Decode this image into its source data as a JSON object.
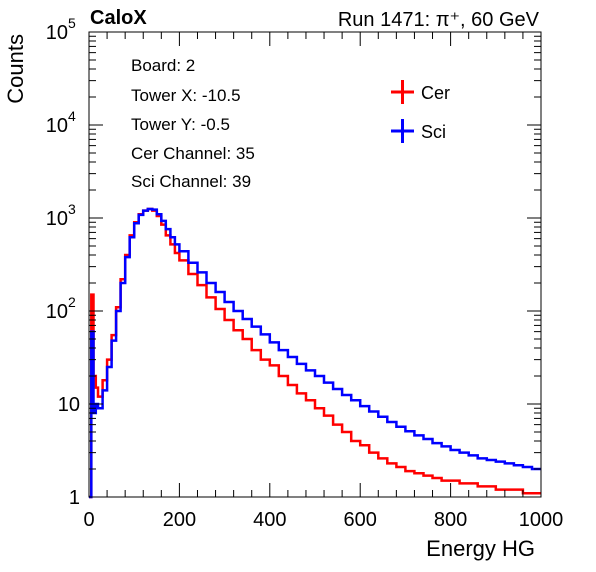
{
  "header": {
    "experiment": "CaloX",
    "run_info": "Run 1471:   π⁺, 60 GeV"
  },
  "info_box": {
    "lines": [
      "Board: 2",
      "Tower X: -10.5",
      "Tower Y: -0.5",
      "Cer Channel: 35",
      "Sci Channel: 39"
    ]
  },
  "chart_data": {
    "type": "line",
    "xlabel": "Energy HG",
    "ylabel": "Counts",
    "xlim": [
      0,
      1000
    ],
    "ylim": [
      1,
      100000
    ],
    "yscale": "log",
    "grid": false,
    "legend_position": "top-right",
    "x_ticks": [
      "0",
      "200",
      "400",
      "600",
      "800",
      "1000"
    ],
    "y_ticks": [
      {
        "base": "1",
        "exp": ""
      },
      {
        "base": "10",
        "exp": ""
      },
      {
        "base": "10",
        "exp": "2"
      },
      {
        "base": "10",
        "exp": "3"
      },
      {
        "base": "10",
        "exp": "4"
      },
      {
        "base": "10",
        "exp": "5"
      }
    ],
    "series": [
      {
        "name": "Cer",
        "color": "#ff0000",
        "x": [
          0,
          5,
          10,
          15,
          20,
          30,
          40,
          50,
          60,
          70,
          80,
          90,
          100,
          110,
          120,
          130,
          140,
          150,
          160,
          170,
          180,
          190,
          200,
          220,
          240,
          260,
          280,
          300,
          320,
          340,
          360,
          380,
          400,
          420,
          440,
          460,
          480,
          500,
          520,
          540,
          560,
          580,
          600,
          620,
          640,
          660,
          680,
          700,
          720,
          740,
          760,
          780,
          800,
          820,
          840,
          860,
          880,
          900,
          920,
          940,
          960,
          980,
          1000
        ],
        "y": [
          1,
          150,
          20,
          15,
          12,
          18,
          30,
          55,
          110,
          220,
          400,
          650,
          900,
          1100,
          1200,
          1250,
          1200,
          1050,
          850,
          650,
          520,
          420,
          350,
          250,
          190,
          140,
          105,
          80,
          62,
          50,
          38,
          30,
          26,
          20,
          16,
          13,
          11,
          9,
          7.5,
          6,
          5,
          4,
          3.6,
          3,
          2.6,
          2.3,
          2.1,
          1.9,
          1.8,
          1.7,
          1.6,
          1.5,
          1.5,
          1.4,
          1.4,
          1.3,
          1.3,
          1.2,
          1.2,
          1.2,
          1.1,
          1.1,
          1
        ]
      },
      {
        "name": "Sci",
        "color": "#0000ff",
        "x": [
          0,
          5,
          10,
          15,
          20,
          30,
          40,
          50,
          60,
          70,
          80,
          90,
          100,
          110,
          120,
          130,
          140,
          150,
          160,
          170,
          180,
          190,
          200,
          220,
          240,
          260,
          280,
          300,
          320,
          340,
          360,
          380,
          400,
          420,
          440,
          460,
          480,
          500,
          520,
          540,
          560,
          580,
          600,
          620,
          640,
          660,
          680,
          700,
          720,
          740,
          760,
          780,
          800,
          820,
          840,
          860,
          880,
          900,
          920,
          940,
          960,
          980,
          1000
        ],
        "y": [
          1,
          60,
          8,
          10,
          9,
          14,
          25,
          48,
          100,
          200,
          380,
          620,
          880,
          1080,
          1200,
          1250,
          1230,
          1100,
          930,
          760,
          620,
          520,
          440,
          330,
          260,
          200,
          160,
          125,
          100,
          82,
          68,
          56,
          46,
          38,
          32,
          27,
          23,
          20,
          17,
          14.5,
          12.5,
          11,
          9.5,
          8.3,
          7.3,
          6.4,
          5.7,
          5.1,
          4.6,
          4.2,
          3.8,
          3.5,
          3.2,
          3,
          2.8,
          2.6,
          2.5,
          2.4,
          2.3,
          2.2,
          2.1,
          2,
          1.9
        ]
      }
    ]
  }
}
